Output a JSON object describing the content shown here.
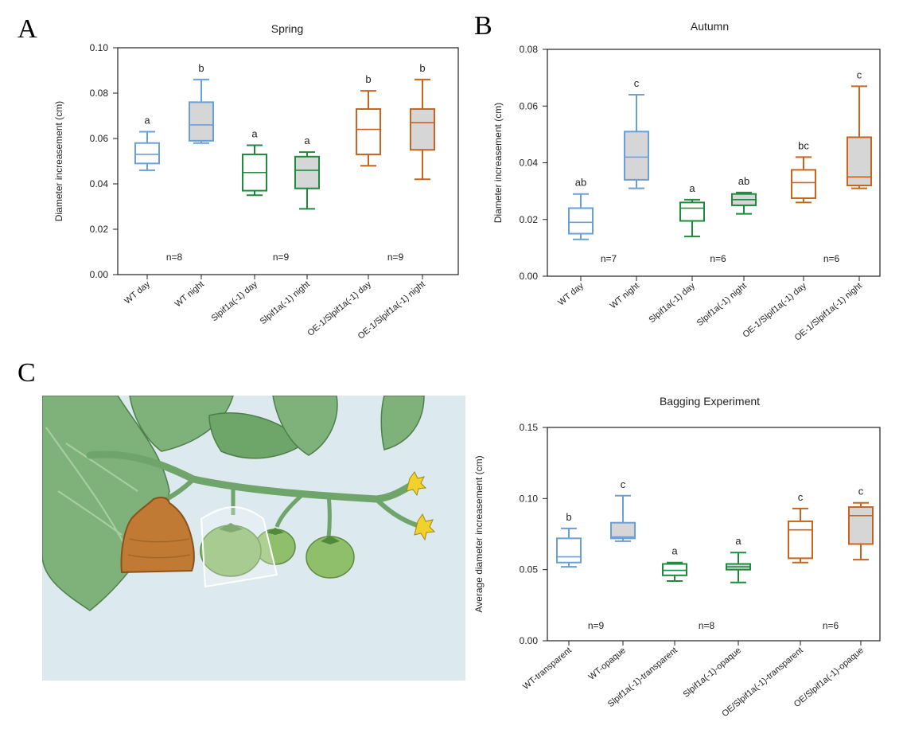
{
  "panels": {
    "a": "A",
    "b": "B",
    "c": "C"
  },
  "colors": {
    "blue": "#6a9fd8",
    "green": "#1f8a3c",
    "orange": "#c8641e",
    "fill_gray": "#d6d6d6",
    "sky": "#dce9ef"
  },
  "chart_data": [
    {
      "type": "box",
      "title": "Spring",
      "ylabel": "Diameter increasement (cm)",
      "ylim": [
        0,
        0.1
      ],
      "yticks": [
        "0.00",
        "0.02",
        "0.04",
        "0.06",
        "0.08",
        "0.10"
      ],
      "categories": [
        "WT day",
        "WT night",
        "Slpif1a(-1) day",
        "Slpif1a(-1) night",
        "OE-1/Slpif1a(-1) day",
        "OE-1/Slpif1a(-1) night"
      ],
      "boxes": [
        {
          "min": 0.046,
          "q1": 0.049,
          "median": 0.053,
          "q3": 0.058,
          "max": 0.063,
          "letter": "a",
          "color": "blue",
          "filled": false
        },
        {
          "min": 0.058,
          "q1": 0.059,
          "median": 0.066,
          "q3": 0.076,
          "max": 0.086,
          "letter": "b",
          "color": "blue",
          "filled": true
        },
        {
          "min": 0.035,
          "q1": 0.037,
          "median": 0.045,
          "q3": 0.053,
          "max": 0.057,
          "letter": "a",
          "color": "green",
          "filled": false
        },
        {
          "min": 0.029,
          "q1": 0.038,
          "median": 0.046,
          "q3": 0.052,
          "max": 0.054,
          "letter": "a",
          "color": "green",
          "filled": true
        },
        {
          "min": 0.048,
          "q1": 0.053,
          "median": 0.064,
          "q3": 0.073,
          "max": 0.081,
          "letter": "b",
          "color": "orange",
          "filled": false
        },
        {
          "min": 0.042,
          "q1": 0.055,
          "median": 0.067,
          "q3": 0.073,
          "max": 0.086,
          "letter": "b",
          "color": "orange",
          "filled": true
        }
      ],
      "n_labels": [
        {
          "text": "n=8",
          "between": [
            0,
            1
          ]
        },
        {
          "text": "n=9",
          "between": [
            2,
            3
          ]
        },
        {
          "text": "n=9",
          "between": [
            4,
            5
          ]
        }
      ]
    },
    {
      "type": "box",
      "title": "Autumn",
      "ylabel": "Diameter increasement (cm)",
      "ylim": [
        0,
        0.08
      ],
      "yticks": [
        "0.00",
        "0.02",
        "0.04",
        "0.06",
        "0.08"
      ],
      "categories": [
        "WT day",
        "WT night",
        "Slpif1a(-1) day",
        "Slpif1a(-1) night",
        "OE-1/Slpif1a(-1) day",
        "OE-1/Slpif1a(-1) night"
      ],
      "boxes": [
        {
          "min": 0.013,
          "q1": 0.015,
          "median": 0.019,
          "q3": 0.024,
          "max": 0.029,
          "letter": "ab",
          "color": "blue",
          "filled": false
        },
        {
          "min": 0.031,
          "q1": 0.034,
          "median": 0.042,
          "q3": 0.051,
          "max": 0.064,
          "letter": "c",
          "color": "blue",
          "filled": true
        },
        {
          "min": 0.014,
          "q1": 0.0195,
          "median": 0.024,
          "q3": 0.026,
          "max": 0.027,
          "letter": "a",
          "color": "green",
          "filled": false
        },
        {
          "min": 0.022,
          "q1": 0.025,
          "median": 0.027,
          "q3": 0.029,
          "max": 0.0295,
          "letter": "ab",
          "color": "green",
          "filled": true
        },
        {
          "min": 0.026,
          "q1": 0.0275,
          "median": 0.033,
          "q3": 0.0375,
          "max": 0.042,
          "letter": "bc",
          "color": "orange",
          "filled": false
        },
        {
          "min": 0.031,
          "q1": 0.032,
          "median": 0.035,
          "q3": 0.049,
          "max": 0.067,
          "letter": "c",
          "color": "orange",
          "filled": true
        }
      ],
      "n_labels": [
        {
          "text": "n=7",
          "between": [
            0,
            1
          ]
        },
        {
          "text": "n=6",
          "between": [
            2,
            3
          ]
        },
        {
          "text": "n=6",
          "between": [
            4,
            5
          ]
        }
      ]
    },
    {
      "type": "box",
      "title": "Bagging Experiment",
      "ylabel": "Average diameter increasement (cm)",
      "ylim": [
        0,
        0.15
      ],
      "yticks": [
        "0.00",
        "0.05",
        "0.10",
        "0.15"
      ],
      "categories": [
        "WT-transparent",
        "WT-opaque",
        "Slpif1a(-1)-transparent",
        "Slpif1a(-1)-opaque",
        "OE/Slpif1a(-1)-transparent",
        "OE/Slpif1a(-1)-opaque"
      ],
      "boxes": [
        {
          "min": 0.052,
          "q1": 0.055,
          "median": 0.059,
          "q3": 0.072,
          "max": 0.079,
          "letter": "b",
          "color": "blue",
          "filled": false
        },
        {
          "min": 0.07,
          "q1": 0.072,
          "median": 0.073,
          "q3": 0.083,
          "max": 0.102,
          "letter": "c",
          "color": "blue",
          "filled": true
        },
        {
          "min": 0.042,
          "q1": 0.046,
          "median": 0.0495,
          "q3": 0.054,
          "max": 0.055,
          "letter": "a",
          "color": "green",
          "filled": false
        },
        {
          "min": 0.041,
          "q1": 0.05,
          "median": 0.052,
          "q3": 0.054,
          "max": 0.062,
          "letter": "a",
          "color": "green",
          "filled": true
        },
        {
          "min": 0.055,
          "q1": 0.058,
          "median": 0.078,
          "q3": 0.084,
          "max": 0.093,
          "letter": "c",
          "color": "orange",
          "filled": false
        },
        {
          "min": 0.057,
          "q1": 0.068,
          "median": 0.088,
          "q3": 0.094,
          "max": 0.097,
          "letter": "c",
          "color": "orange",
          "filled": true
        }
      ],
      "n_labels": [
        {
          "text": "n=9",
          "between": [
            0,
            1
          ]
        },
        {
          "text": "n=8",
          "between": [
            2,
            3
          ]
        },
        {
          "text": "n=6",
          "between": [
            4,
            5
          ]
        }
      ]
    }
  ]
}
